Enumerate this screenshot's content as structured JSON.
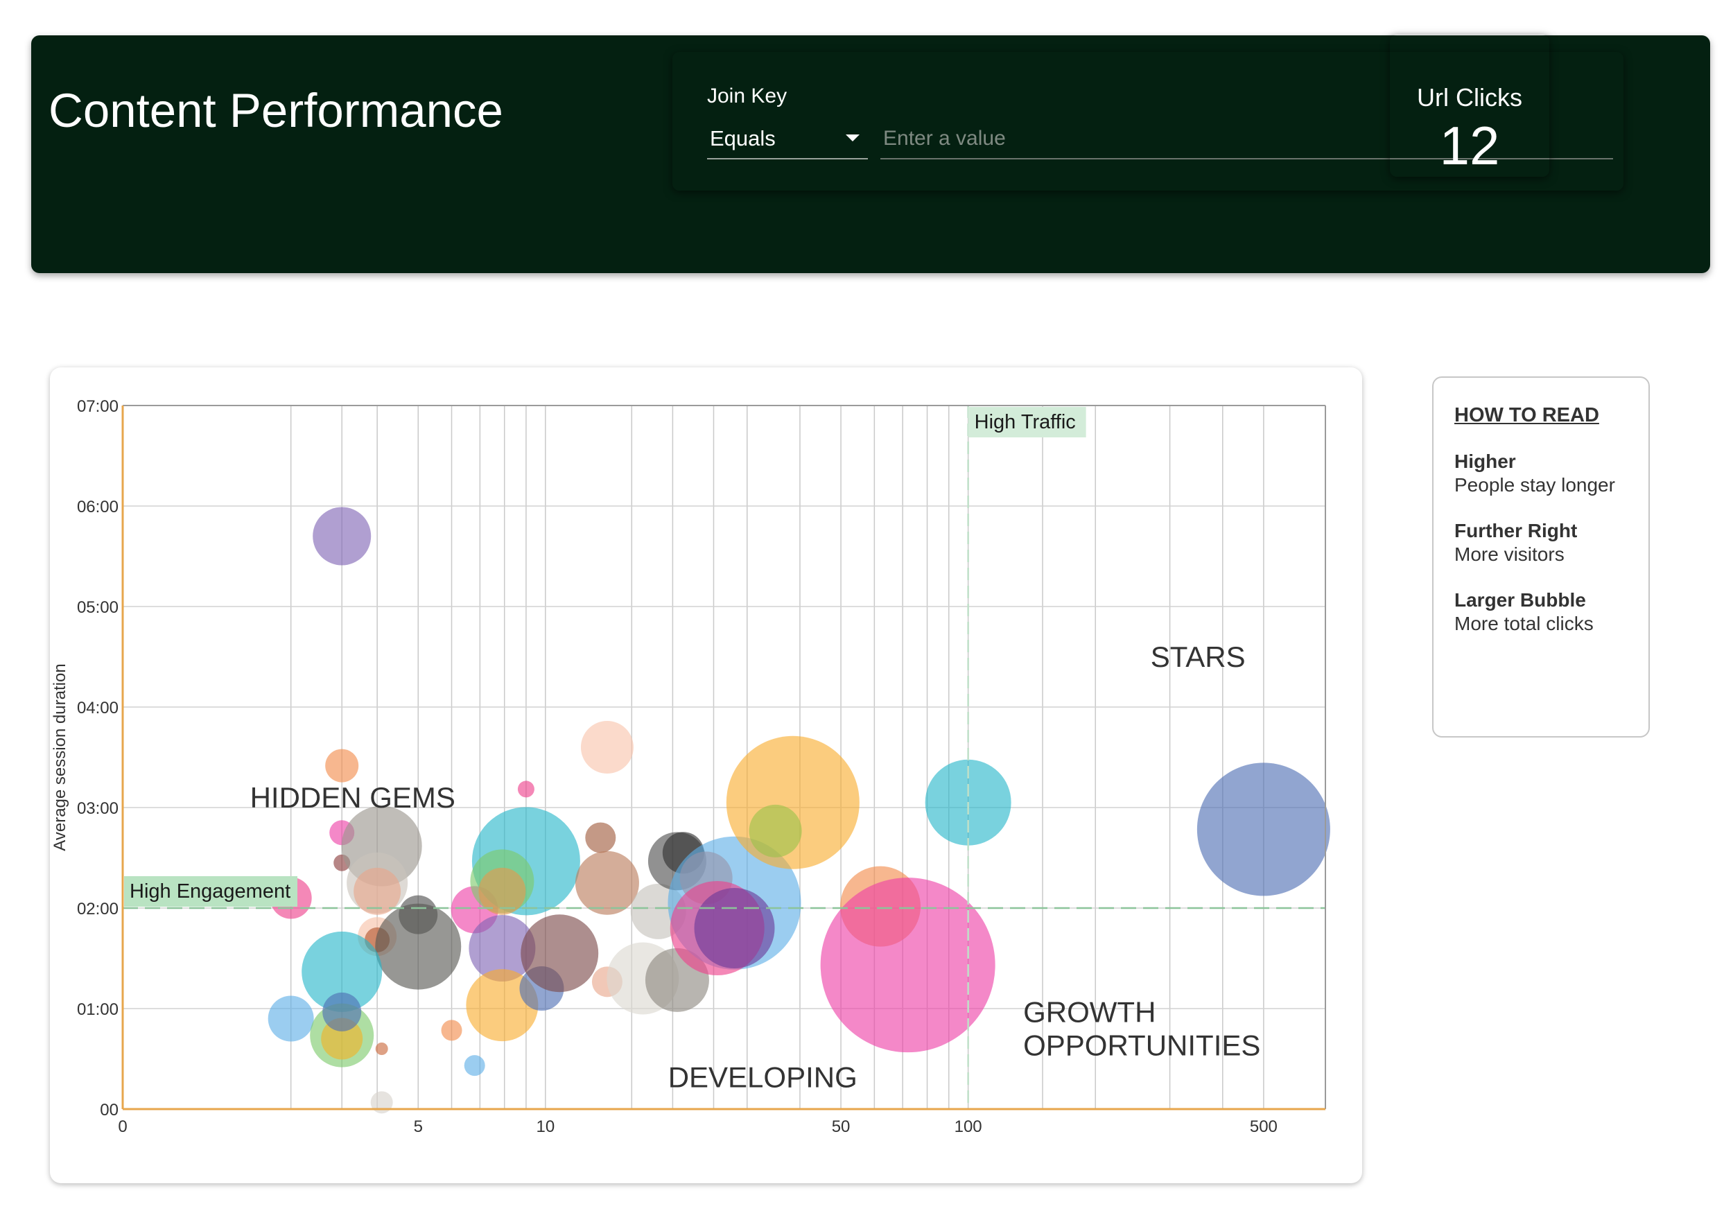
{
  "header": {
    "title": "Content Performance",
    "filter": {
      "label": "Join Key",
      "operator": "Equals",
      "placeholder": "Enter a value",
      "value": ""
    },
    "kpi": {
      "label": "Url Clicks",
      "value": "12"
    }
  },
  "legend": {
    "heading": "HOW TO READ",
    "items": [
      {
        "term": "Higher",
        "desc": "People stay longer"
      },
      {
        "term": "Further Right",
        "desc": "More visitors"
      },
      {
        "term": "Larger Bubble",
        "desc": "More total clicks"
      }
    ]
  },
  "chart_data": {
    "type": "scatter",
    "subtype": "bubble",
    "xscale": "log",
    "xlim": [
      1,
      700
    ],
    "ylim": [
      0,
      420
    ],
    "ylabel": "Average session duration",
    "xlabel": "",
    "x_ticks": [
      {
        "value": 1,
        "label": "0"
      },
      {
        "value": 5,
        "label": "5"
      },
      {
        "value": 10,
        "label": "10"
      },
      {
        "value": 50,
        "label": "50"
      },
      {
        "value": 100,
        "label": "100"
      },
      {
        "value": 500,
        "label": "500"
      }
    ],
    "x_gridlines": [
      2.5,
      3.3,
      4,
      5,
      6,
      7,
      8,
      9,
      10,
      16,
      20,
      25,
      30,
      40,
      50,
      60,
      70,
      80,
      90,
      100,
      150,
      200,
      300,
      400,
      500
    ],
    "y_ticks": [
      {
        "value": 0,
        "label": "00"
      },
      {
        "value": 60,
        "label": "01:00"
      },
      {
        "value": 120,
        "label": "02:00"
      },
      {
        "value": 180,
        "label": "03:00"
      },
      {
        "value": 240,
        "label": "04:00"
      },
      {
        "value": 300,
        "label": "05:00"
      },
      {
        "value": 360,
        "label": "06:00"
      },
      {
        "value": 420,
        "label": "07:00"
      }
    ],
    "grid": true,
    "thresholds": {
      "high_traffic": {
        "x": 100,
        "label": "High Traffic"
      },
      "high_engagement": {
        "y": 120,
        "label": "High Engagement"
      }
    },
    "quadrant_labels": [
      {
        "text": "STARS",
        "x": 270,
        "y": 264
      },
      {
        "text": "HIDDEN GEMS",
        "x": 2,
        "y": 180
      },
      {
        "text": "GROWTH",
        "x": 135,
        "y": 52
      },
      {
        "text": "OPPORTUNITIES",
        "x": 135,
        "y": 32
      },
      {
        "text": "DEVELOPING",
        "x": 19.5,
        "y": 13
      }
    ],
    "points": [
      {
        "x": 3.3,
        "y": 342,
        "r": 42,
        "color": "#8064b5"
      },
      {
        "x": 3.3,
        "y": 205,
        "r": 24,
        "color": "#f28a4a"
      },
      {
        "x": 3.3,
        "y": 165,
        "r": 18,
        "color": "#ee3fa7"
      },
      {
        "x": 3.3,
        "y": 147,
        "r": 12,
        "color": "#8b3c3c"
      },
      {
        "x": 2.5,
        "y": 126,
        "r": 30,
        "color": "#ee3f8a"
      },
      {
        "x": 4.1,
        "y": 157,
        "r": 58,
        "color": "#9a958c"
      },
      {
        "x": 4.0,
        "y": 135,
        "r": 44,
        "color": "#c9c4bb"
      },
      {
        "x": 4.0,
        "y": 130,
        "r": 34,
        "color": "#e9a78a"
      },
      {
        "x": 4.0,
        "y": 103,
        "r": 28,
        "color": "#f7c0a6"
      },
      {
        "x": 4.0,
        "y": 101,
        "r": 18,
        "color": "#b3552d"
      },
      {
        "x": 5.0,
        "y": 116,
        "r": 28,
        "color": "#4e4e4e"
      },
      {
        "x": 5.0,
        "y": 97,
        "r": 62,
        "color": "#575753"
      },
      {
        "x": 3.3,
        "y": 82,
        "r": 58,
        "color": "#26b7c9"
      },
      {
        "x": 2.5,
        "y": 54,
        "r": 33,
        "color": "#5daee6"
      },
      {
        "x": 3.3,
        "y": 44,
        "r": 46,
        "color": "#7dc96a"
      },
      {
        "x": 3.3,
        "y": 42,
        "r": 30,
        "color": "#f2b326"
      },
      {
        "x": 3.3,
        "y": 58,
        "r": 28,
        "color": "#4d6eb3"
      },
      {
        "x": 4.1,
        "y": 36,
        "r": 9,
        "color": "#c9683a"
      },
      {
        "x": 4.1,
        "y": 4,
        "r": 16,
        "color": "#d6d2cb"
      },
      {
        "x": 6.0,
        "y": 47,
        "r": 15,
        "color": "#f28a4a"
      },
      {
        "x": 6.8,
        "y": 26,
        "r": 15,
        "color": "#5daee6"
      },
      {
        "x": 6.8,
        "y": 119,
        "r": 34,
        "color": "#ee3fa7"
      },
      {
        "x": 9.0,
        "y": 191,
        "r": 12,
        "color": "#ee3f8a"
      },
      {
        "x": 9.0,
        "y": 148,
        "r": 78,
        "color": "#26b7c9"
      },
      {
        "x": 7.9,
        "y": 136,
        "r": 46,
        "color": "#7dc96a"
      },
      {
        "x": 7.9,
        "y": 130,
        "r": 34,
        "color": "#e39a4d"
      },
      {
        "x": 7.9,
        "y": 96,
        "r": 48,
        "color": "#8064b5"
      },
      {
        "x": 7.9,
        "y": 62,
        "r": 52,
        "color": "#f8ad2e"
      },
      {
        "x": 9.8,
        "y": 72,
        "r": 32,
        "color": "#4d6eb3"
      },
      {
        "x": 10.8,
        "y": 93,
        "r": 56,
        "color": "#7a4848"
      },
      {
        "x": 13.5,
        "y": 162,
        "r": 22,
        "color": "#a05a3c"
      },
      {
        "x": 14.0,
        "y": 216,
        "r": 38,
        "color": "#f9c3ab"
      },
      {
        "x": 14.0,
        "y": 135,
        "r": 46,
        "color": "#ba7a5a"
      },
      {
        "x": 14.0,
        "y": 76,
        "r": 22,
        "color": "#e9a78a"
      },
      {
        "x": 17.0,
        "y": 78,
        "r": 52,
        "color": "#dcd8d1"
      },
      {
        "x": 18.5,
        "y": 118,
        "r": 40,
        "color": "#c5c2bb"
      },
      {
        "x": 20.5,
        "y": 77,
        "r": 46,
        "color": "#8c877f"
      },
      {
        "x": 20.5,
        "y": 148,
        "r": 42,
        "color": "#4e4e4e"
      },
      {
        "x": 21.2,
        "y": 153,
        "r": 30,
        "color": "#2e2e2e"
      },
      {
        "x": 24.0,
        "y": 138,
        "r": 38,
        "color": "#f06a4a"
      },
      {
        "x": 28.0,
        "y": 123,
        "r": 96,
        "color": "#5daee6"
      },
      {
        "x": 25.5,
        "y": 108,
        "r": 68,
        "color": "#ee3f8a"
      },
      {
        "x": 28.0,
        "y": 108,
        "r": 58,
        "color": "#6a3a9a"
      },
      {
        "x": 38.5,
        "y": 183,
        "r": 96,
        "color": "#f8ad2e"
      },
      {
        "x": 35.0,
        "y": 166,
        "r": 38,
        "color": "#9bc24a"
      },
      {
        "x": 62.0,
        "y": 121,
        "r": 58,
        "color": "#f28a4a"
      },
      {
        "x": 72.0,
        "y": 86,
        "r": 126,
        "color": "#ee3fa7"
      },
      {
        "x": 100.0,
        "y": 183,
        "r": 62,
        "color": "#26b7c9"
      },
      {
        "x": 500.0,
        "y": 167,
        "r": 96,
        "color": "#4d6eb3"
      }
    ]
  }
}
